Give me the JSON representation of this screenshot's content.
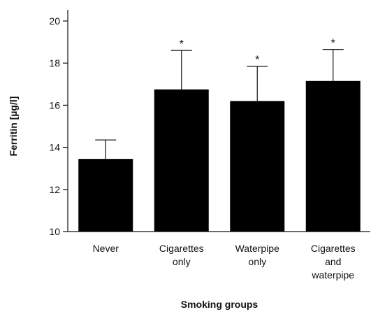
{
  "chart_data": {
    "type": "bar",
    "title": "",
    "xlabel": "Smoking groups",
    "ylabel": "Ferritin [µg/l]",
    "ylim": [
      10,
      20
    ],
    "yticks": [
      10,
      12,
      14,
      16,
      18,
      20
    ],
    "categories": [
      [
        "Never"
      ],
      [
        "Cigarettes",
        "only"
      ],
      [
        "Waterpipe",
        "only"
      ],
      [
        "Cigarettes",
        "and",
        "waterpipe"
      ]
    ],
    "values": [
      13.45,
      16.75,
      16.2,
      17.15
    ],
    "error_upper": [
      14.35,
      18.6,
      17.85,
      18.65
    ],
    "significance": [
      "",
      "*",
      "*",
      "*"
    ],
    "bar_color": "#000000",
    "grid": false,
    "legend": "none"
  }
}
